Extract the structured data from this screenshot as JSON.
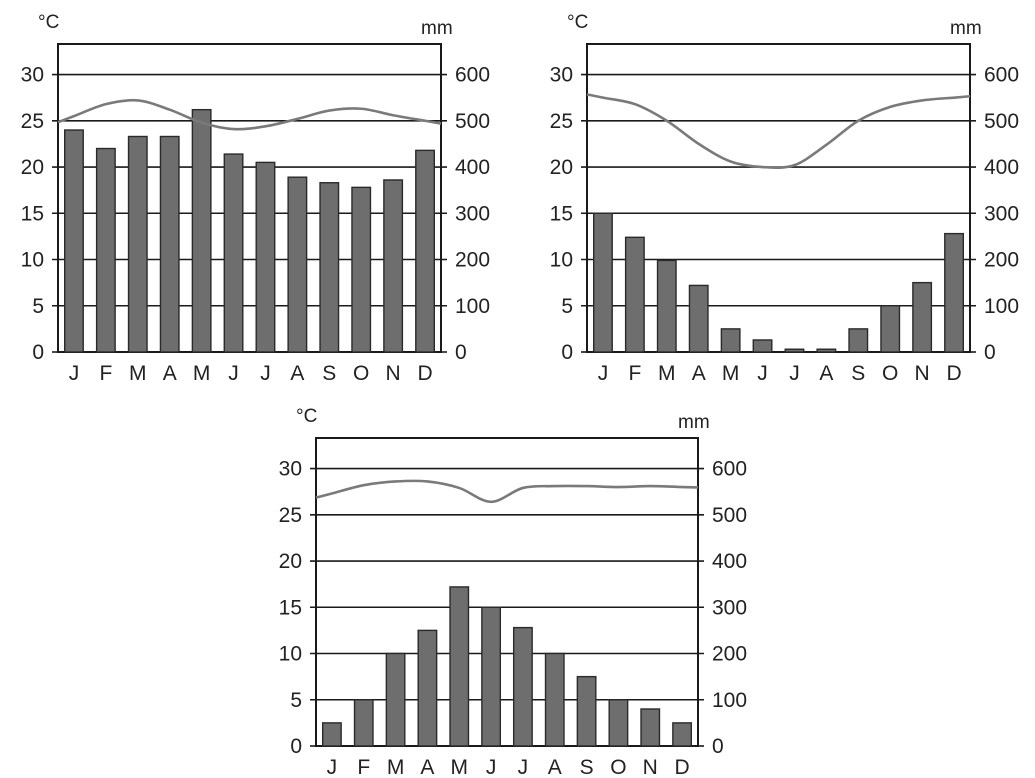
{
  "chart_data": [
    {
      "type": "bar",
      "categories": [
        "J",
        "F",
        "M",
        "A",
        "M",
        "J",
        "J",
        "A",
        "S",
        "O",
        "N",
        "D"
      ],
      "left_unit": "°C",
      "right_unit": "mm",
      "temperature_axis": {
        "ylim": [
          0,
          33.3
        ],
        "ticks": [
          "0",
          "5",
          "10",
          "15",
          "20",
          "25",
          "30"
        ]
      },
      "precipitation_axis": {
        "ylim": [
          0,
          666
        ],
        "ticks": [
          "0",
          "100",
          "200",
          "300",
          "400",
          "500",
          "600"
        ]
      },
      "grid": "horizontal",
      "series": [
        {
          "kind": "bar",
          "axis": "precipitation",
          "values": [
            480,
            440,
            466,
            466,
            524,
            428,
            410,
            378,
            366,
            356,
            372,
            436
          ]
        },
        {
          "kind": "line",
          "axis": "temperature",
          "values": [
            25.5,
            26.8,
            27.2,
            26.2,
            24.8,
            24.1,
            24.4,
            25.2,
            26.1,
            26.3,
            25.6,
            25.0
          ]
        }
      ]
    },
    {
      "type": "bar",
      "categories": [
        "J",
        "F",
        "M",
        "A",
        "M",
        "J",
        "J",
        "A",
        "S",
        "O",
        "N",
        "D"
      ],
      "left_unit": "°C",
      "right_unit": "mm",
      "temperature_axis": {
        "ylim": [
          0,
          33.3
        ],
        "ticks": [
          "0",
          "5",
          "10",
          "15",
          "20",
          "25",
          "30"
        ]
      },
      "precipitation_axis": {
        "ylim": [
          0,
          666
        ],
        "ticks": [
          "0",
          "100",
          "200",
          "300",
          "400",
          "500",
          "600"
        ]
      },
      "grid": "horizontal",
      "series": [
        {
          "kind": "bar",
          "axis": "precipitation",
          "values": [
            300,
            248,
            198,
            144,
            50,
            26,
            6,
            6,
            50,
            100,
            150,
            256
          ]
        },
        {
          "kind": "line",
          "axis": "temperature",
          "values": [
            27.5,
            26.8,
            25.0,
            22.5,
            20.6,
            20.0,
            20.2,
            22.4,
            25.0,
            26.5,
            27.2,
            27.5
          ]
        }
      ]
    },
    {
      "type": "bar",
      "categories": [
        "J",
        "F",
        "M",
        "A",
        "M",
        "J",
        "J",
        "A",
        "S",
        "O",
        "N",
        "D"
      ],
      "left_unit": "°C",
      "right_unit": "mm",
      "temperature_axis": {
        "ylim": [
          0,
          33.3
        ],
        "ticks": [
          "0",
          "5",
          "10",
          "15",
          "20",
          "25",
          "30"
        ]
      },
      "precipitation_axis": {
        "ylim": [
          0,
          666
        ],
        "ticks": [
          "0",
          "100",
          "200",
          "300",
          "400",
          "500",
          "600"
        ]
      },
      "grid": "horizontal",
      "series": [
        {
          "kind": "bar",
          "axis": "precipitation",
          "values": [
            50,
            100,
            200,
            250,
            344,
            300,
            256,
            200,
            150,
            100,
            80,
            50
          ]
        },
        {
          "kind": "line",
          "axis": "temperature",
          "values": [
            27.3,
            28.2,
            28.6,
            28.6,
            27.9,
            26.4,
            27.9,
            28.1,
            28.1,
            28.0,
            28.1,
            28.0
          ]
        }
      ]
    }
  ],
  "colors": {
    "bar_fill": "#6e6e6e",
    "bar_stroke": "#2a2a2a",
    "line": "#7a7a7a",
    "axis": "#1a1a1a",
    "grid": "#1a1a1a",
    "text": "#222222"
  }
}
